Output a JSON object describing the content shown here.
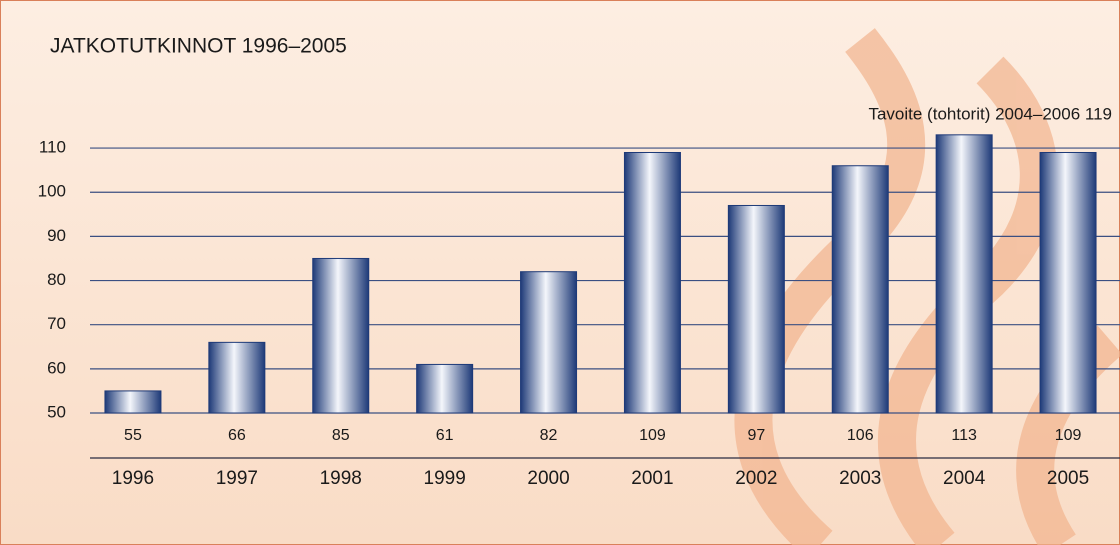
{
  "chart_data": {
    "type": "bar",
    "title": "JATKOTUTKINNOT 1996–2005",
    "annotation": "Tavoite (tohtorit) 2004–2006 119",
    "categories": [
      "1996",
      "1997",
      "1998",
      "1999",
      "2000",
      "2001",
      "2002",
      "2003",
      "2004",
      "2005"
    ],
    "values": [
      55,
      66,
      85,
      61,
      82,
      109,
      97,
      106,
      113,
      109
    ],
    "color": "#1e3a78",
    "ylim": [
      50,
      115
    ],
    "yticks": [
      50,
      60,
      70,
      80,
      90,
      100,
      110
    ],
    "grid": true
  }
}
